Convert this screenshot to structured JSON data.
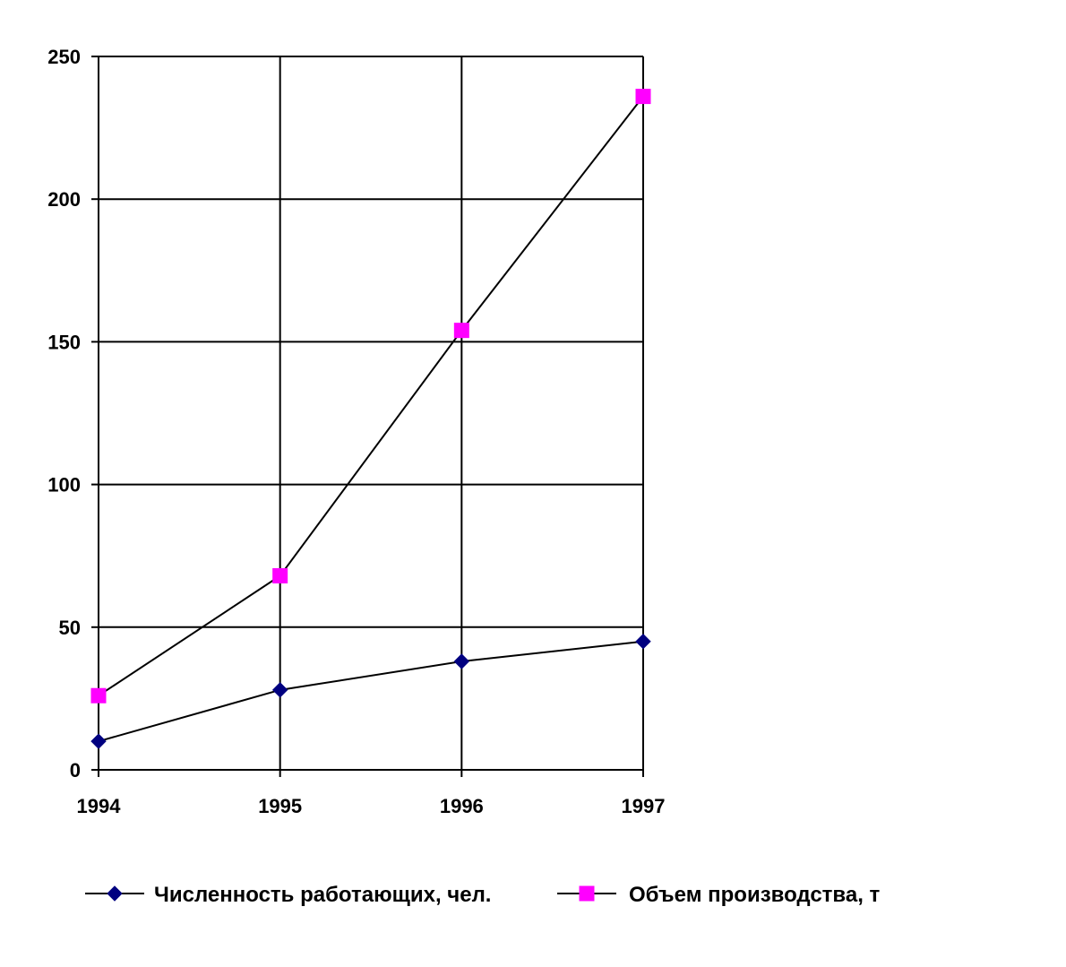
{
  "chart_data": {
    "type": "line",
    "categories": [
      "1994",
      "1995",
      "1996",
      "1997"
    ],
    "series": [
      {
        "name": "Численность работающих, чел.",
        "values": [
          10,
          28,
          38,
          45
        ],
        "color": "#000080",
        "marker": "diamond"
      },
      {
        "name": "Объем производства, т",
        "values": [
          26,
          68,
          154,
          236
        ],
        "color": "#FF00FF",
        "marker": "square"
      }
    ],
    "y_ticks": [
      "0",
      "50",
      "100",
      "150",
      "200",
      "250"
    ],
    "ylim": [
      0,
      250
    ],
    "grid": true,
    "legend_position": "bottom",
    "line_color": "#000000"
  }
}
